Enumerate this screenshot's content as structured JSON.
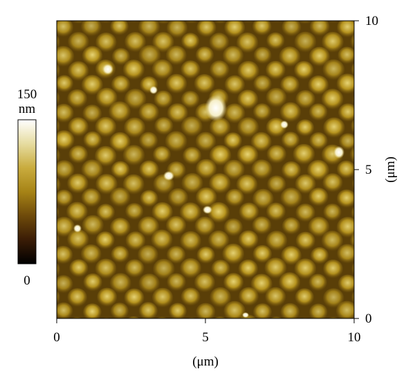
{
  "colorbar": {
    "max_label": "150",
    "unit_label": "nm",
    "min_label": "0",
    "colors": [
      "#000000",
      "#3a1c06",
      "#6e4a0a",
      "#a68316",
      "#c9ac3e",
      "#e6dca0",
      "#ffffff"
    ]
  },
  "x_axis": {
    "label": "(μm)",
    "ticks": [
      {
        "value": 0,
        "label": "0"
      },
      {
        "value": 5,
        "label": "5"
      },
      {
        "value": 10,
        "label": "10"
      }
    ]
  },
  "y_axis": {
    "label": "(μm)",
    "ticks": [
      {
        "value": 0,
        "label": "0"
      },
      {
        "value": 5,
        "label": "5"
      },
      {
        "value": 10,
        "label": "10"
      }
    ]
  },
  "image": {
    "description_colors": {
      "dark": "#4a3306",
      "mid": "#8a6c10",
      "light": "#d4c05a",
      "highlight": "#fffbe6"
    }
  }
}
